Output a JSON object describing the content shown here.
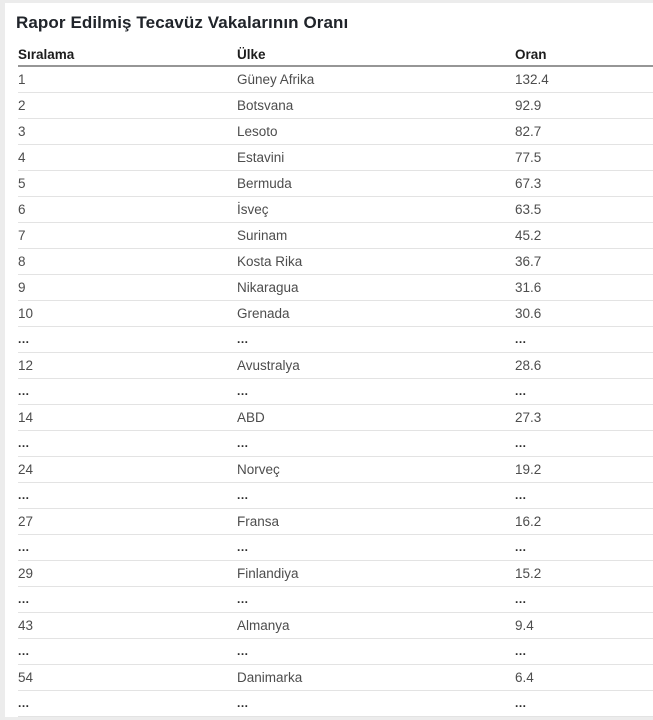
{
  "page_title": "Rapor Edilmiş Tecavüz Vakalarının Oranı",
  "colors": {
    "page_background": "#ffffff",
    "frame_background": "#ececec",
    "title_text": "#20242a",
    "header_text": "#1d1d1d",
    "cell_text": "#4d4d4d",
    "header_border": "#969696",
    "row_border": "#e3e3e3"
  },
  "chart_data": {
    "type": "table",
    "title": "Rapor Edilmiş Tecavüz Vakalarının Oranı",
    "columns": [
      {
        "key": "rank",
        "label": "Sıralama"
      },
      {
        "key": "country",
        "label": "Ülke"
      },
      {
        "key": "rate",
        "label": "Oran"
      }
    ],
    "rows": [
      {
        "rank": "1",
        "country": "Güney Afrika",
        "rate": "132.4"
      },
      {
        "rank": "2",
        "country": "Botsvana",
        "rate": "92.9"
      },
      {
        "rank": "3",
        "country": "Lesoto",
        "rate": "82.7"
      },
      {
        "rank": "4",
        "country": "Estavini",
        "rate": "77.5"
      },
      {
        "rank": "5",
        "country": "Bermuda",
        "rate": "67.3"
      },
      {
        "rank": "6",
        "country": "İsveç",
        "rate": "63.5"
      },
      {
        "rank": "7",
        "country": "Surinam",
        "rate": "45.2"
      },
      {
        "rank": "8",
        "country": "Kosta Rika",
        "rate": "36.7"
      },
      {
        "rank": "9",
        "country": "Nikaragua",
        "rate": "31.6"
      },
      {
        "rank": "10",
        "country": "Grenada",
        "rate": "30.6"
      },
      {
        "rank": "...",
        "country": "...",
        "rate": "..."
      },
      {
        "rank": "12",
        "country": "Avustralya",
        "rate": "28.6"
      },
      {
        "rank": "...",
        "country": "...",
        "rate": "..."
      },
      {
        "rank": "14",
        "country": "ABD",
        "rate": "27.3"
      },
      {
        "rank": "...",
        "country": "...",
        "rate": "..."
      },
      {
        "rank": "24",
        "country": "Norveç",
        "rate": "19.2"
      },
      {
        "rank": "...",
        "country": "...",
        "rate": "..."
      },
      {
        "rank": "27",
        "country": "Fransa",
        "rate": "16.2"
      },
      {
        "rank": "...",
        "country": "...",
        "rate": "..."
      },
      {
        "rank": "29",
        "country": "Finlandiya",
        "rate": "15.2"
      },
      {
        "rank": "...",
        "country": "...",
        "rate": "..."
      },
      {
        "rank": "43",
        "country": "Almanya",
        "rate": "9.4"
      },
      {
        "rank": "...",
        "country": "...",
        "rate": "..."
      },
      {
        "rank": "54",
        "country": "Danimarka",
        "rate": "6.4"
      },
      {
        "rank": "...",
        "country": "...",
        "rate": "..."
      }
    ]
  }
}
